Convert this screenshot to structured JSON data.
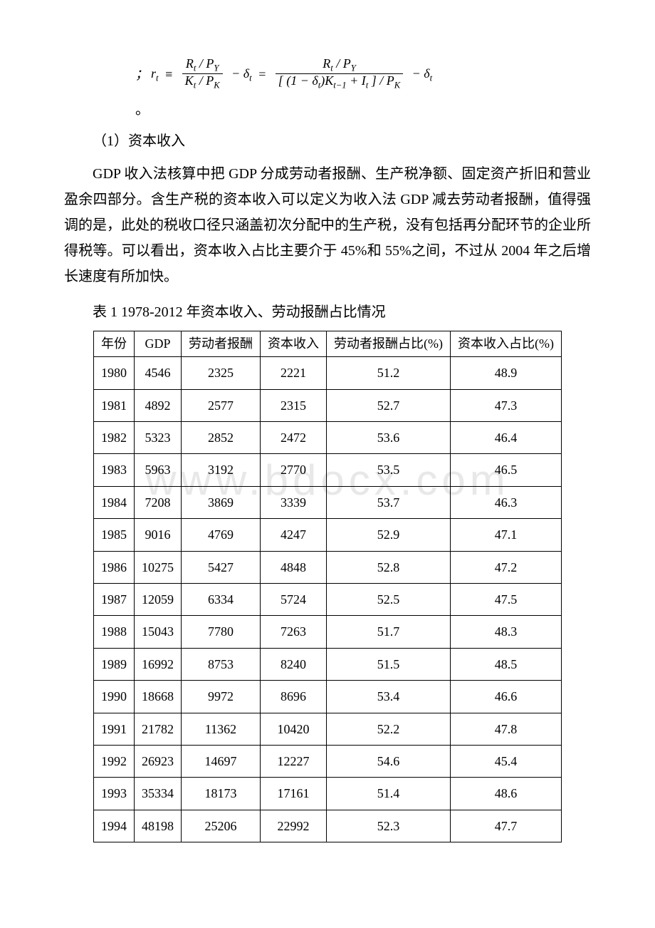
{
  "watermark": "www.bdocx.com",
  "formula_text": "rₜ ≡ (Rₜ / P_Y)/(Kₜ / P_K) − δₜ = (Rₜ / P_Y)/([(1 − δₜ)Kₜ₋₁ + Iₜ] / P_K) − δₜ",
  "sub_heading": "（1）资本收入",
  "paragraph": "GDP 收入法核算中把 GDP 分成劳动者报酬、生产税净额、固定资产折旧和营业盈余四部分。含生产税的资本收入可以定义为收入法 GDP 减去劳动者报酬，值得强调的是，此处的税收口径只涵盖初次分配中的生产税，没有包括再分配环节的企业所得税等。可以看出，资本收入占比主要介于 45%和 55%之间，不过从 2004 年之后增长速度有所加快。",
  "table_caption": "表 1 1978-2012 年资本收入、劳动报酬占比情况",
  "columns": [
    "年份",
    "GDP",
    "劳动者报酬",
    "资本收入",
    "劳动者报酬占比(%)",
    "资本收入占比(%)"
  ],
  "rows": [
    [
      "1980",
      "4546",
      "2325",
      "2221",
      "51.2",
      "48.9"
    ],
    [
      "1981",
      "4892",
      "2577",
      "2315",
      "52.7",
      "47.3"
    ],
    [
      "1982",
      "5323",
      "2852",
      "2472",
      "53.6",
      "46.4"
    ],
    [
      "1983",
      "5963",
      "3192",
      "2770",
      "53.5",
      "46.5"
    ],
    [
      "1984",
      "7208",
      "3869",
      "3339",
      "53.7",
      "46.3"
    ],
    [
      "1985",
      "9016",
      "4769",
      "4247",
      "52.9",
      "47.1"
    ],
    [
      "1986",
      "10275",
      "5427",
      "4848",
      "52.8",
      "47.2"
    ],
    [
      "1987",
      "12059",
      "6334",
      "5724",
      "52.5",
      "47.5"
    ],
    [
      "1988",
      "15043",
      "7780",
      "7263",
      "51.7",
      "48.3"
    ],
    [
      "1989",
      "16992",
      "8753",
      "8240",
      "51.5",
      "48.5"
    ],
    [
      "1990",
      "18668",
      "9972",
      "8696",
      "53.4",
      "46.6"
    ],
    [
      "1991",
      "21782",
      "11362",
      "10420",
      "52.2",
      "47.8"
    ],
    [
      "1992",
      "26923",
      "14697",
      "12227",
      "54.6",
      "45.4"
    ],
    [
      "1993",
      "35334",
      "18173",
      "17161",
      "51.4",
      "48.6"
    ],
    [
      "1994",
      "48198",
      "25206",
      "22992",
      "52.3",
      "47.7"
    ]
  ]
}
